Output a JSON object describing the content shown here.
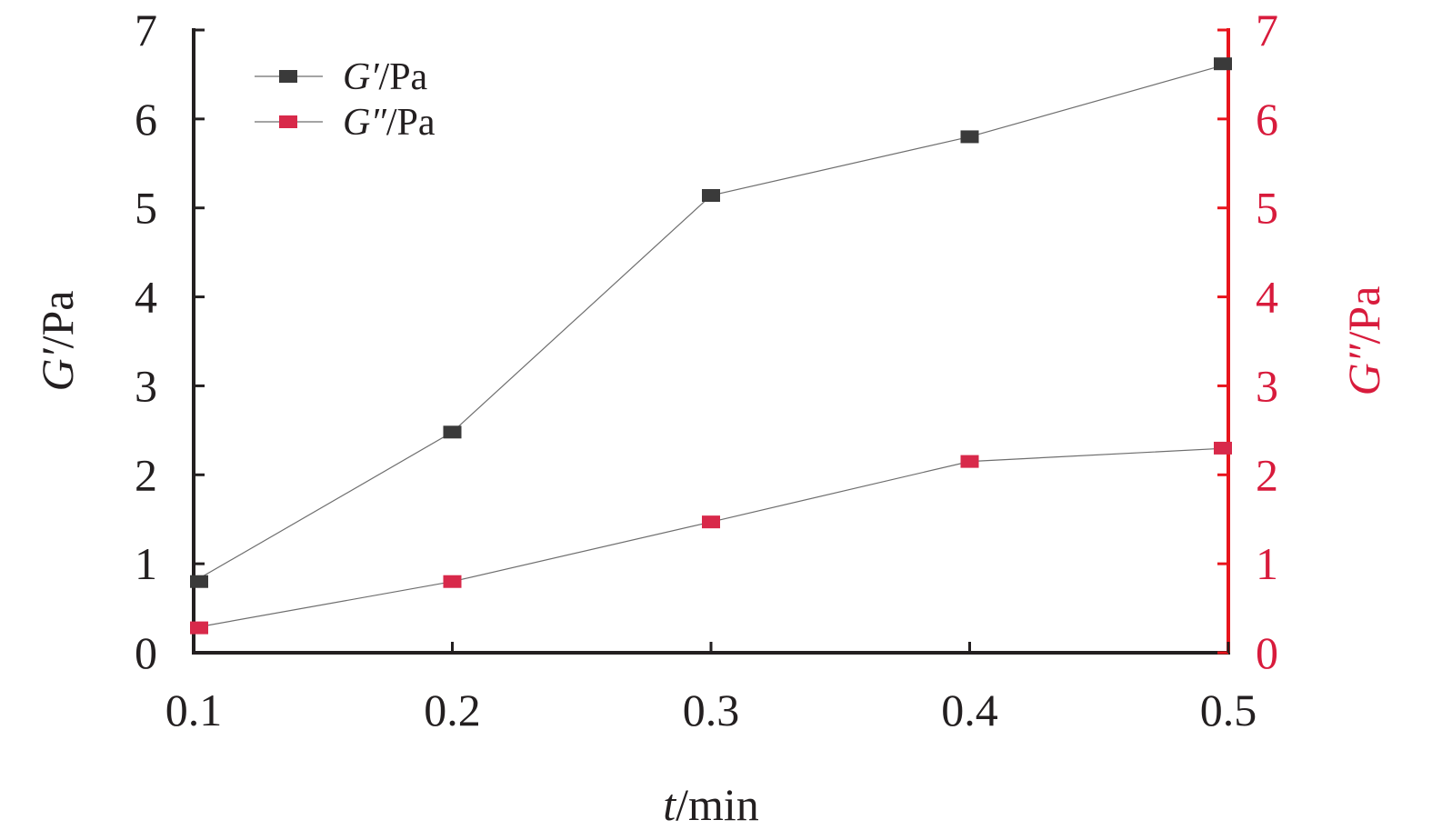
{
  "chart_data": {
    "type": "line",
    "x": [
      0.1,
      0.2,
      0.3,
      0.4,
      0.5
    ],
    "x_tick_labels": [
      "0.1",
      "0.2",
      "0.3",
      "0.4",
      "0.5"
    ],
    "xlabel": {
      "var": "t",
      "unit": "/min"
    },
    "xlim": [
      0.1,
      0.5
    ],
    "y_left": {
      "label": {
        "var": "G′",
        "unit": "/Pa"
      },
      "ylim": [
        0,
        7
      ],
      "ticks": [
        "0",
        "1",
        "2",
        "3",
        "4",
        "5",
        "6",
        "7"
      ],
      "color": "#231f20"
    },
    "y_right": {
      "label": {
        "var": "G″",
        "unit": "/Pa"
      },
      "ylim": [
        0,
        7
      ],
      "ticks": [
        "0",
        "1",
        "2",
        "3",
        "4",
        "5",
        "6",
        "7"
      ],
      "color": "#d81b3c",
      "axis_color": "#e8141c"
    },
    "series": [
      {
        "name": "G′/Pa",
        "name_var": "G′",
        "name_unit": "/Pa",
        "axis": "left",
        "color": "#3a3a3a",
        "values": [
          0.8,
          2.48,
          5.14,
          5.8,
          6.62
        ]
      },
      {
        "name": "G″/Pa",
        "name_var": "G″",
        "name_unit": "/Pa",
        "axis": "right",
        "color": "#d8294a",
        "values": [
          0.28,
          0.8,
          1.47,
          2.15,
          2.3
        ]
      }
    ],
    "legend_position": "top-left",
    "marker": "square",
    "grid": false
  }
}
